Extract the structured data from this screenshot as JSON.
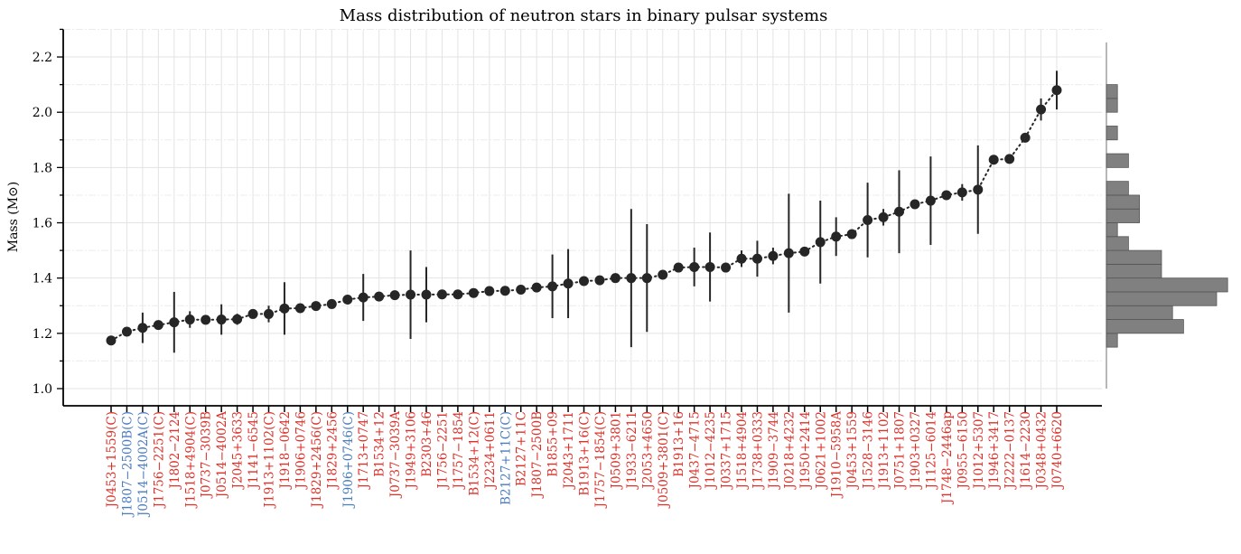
{
  "chart_data": {
    "type": "scatter",
    "title": "Mass distribution of neutron stars in binary pulsar systems",
    "ylabel": "Mass (M⊙)",
    "ylim": [
      0.94,
      2.3
    ],
    "yticks": [
      "1.0",
      "1.2",
      "1.4",
      "1.6",
      "1.8",
      "2.0",
      "2.2"
    ],
    "grid": true,
    "colors": {
      "point": "#262626",
      "label_red": "#dc3028",
      "label_blue": "#4a7cc0",
      "hist": "#808080"
    },
    "points": [
      {
        "name": "J0453+1559(C)",
        "mass": 1.174,
        "err": 0.0,
        "color": "red"
      },
      {
        "name": "J1807−2500B(C)",
        "mass": 1.206,
        "err": 0.0,
        "color": "blue"
      },
      {
        "name": "J0514−4002A(C)",
        "mass": 1.22,
        "err": 0.055,
        "color": "blue"
      },
      {
        "name": "J1756−2251(C)",
        "mass": 1.23,
        "err": 0.0,
        "color": "red"
      },
      {
        "name": "J1802−2124",
        "mass": 1.24,
        "err": 0.11,
        "color": "red"
      },
      {
        "name": "J1518+4904(C)",
        "mass": 1.25,
        "err": 0.03,
        "color": "red"
      },
      {
        "name": "J0737−3039B",
        "mass": 1.249,
        "err": 0.0,
        "color": "red"
      },
      {
        "name": "J0514−4002A",
        "mass": 1.25,
        "err": 0.055,
        "color": "red"
      },
      {
        "name": "J2045+3633",
        "mass": 1.251,
        "err": 0.02,
        "color": "red"
      },
      {
        "name": "J1141−6545",
        "mass": 1.27,
        "err": 0.0,
        "color": "red"
      },
      {
        "name": "J1913+1102(C)",
        "mass": 1.27,
        "err": 0.03,
        "color": "red"
      },
      {
        "name": "J1918−0642",
        "mass": 1.29,
        "err": 0.095,
        "color": "red"
      },
      {
        "name": "J1906+0746",
        "mass": 1.291,
        "err": 0.0,
        "color": "red"
      },
      {
        "name": "J1829+2456(C)",
        "mass": 1.299,
        "err": 0.0,
        "color": "red"
      },
      {
        "name": "J1829+2456",
        "mass": 1.306,
        "err": 0.0,
        "color": "red"
      },
      {
        "name": "J1906+0746(C)",
        "mass": 1.322,
        "err": 0.0,
        "color": "blue"
      },
      {
        "name": "J1713+0747",
        "mass": 1.33,
        "err": 0.085,
        "color": "red"
      },
      {
        "name": "B1534+12",
        "mass": 1.333,
        "err": 0.0,
        "color": "red"
      },
      {
        "name": "J0737−3039A",
        "mass": 1.338,
        "err": 0.0,
        "color": "red"
      },
      {
        "name": "J1949+3106",
        "mass": 1.34,
        "err": 0.16,
        "color": "red"
      },
      {
        "name": "B2303+46",
        "mass": 1.34,
        "err": 0.1,
        "color": "red"
      },
      {
        "name": "J1756−2251",
        "mass": 1.341,
        "err": 0.0,
        "color": "red"
      },
      {
        "name": "J1757−1854",
        "mass": 1.341,
        "err": 0.0,
        "color": "red"
      },
      {
        "name": "B1534+12(C)",
        "mass": 1.346,
        "err": 0.0,
        "color": "red"
      },
      {
        "name": "J2234+0611",
        "mass": 1.353,
        "err": 0.0,
        "color": "red"
      },
      {
        "name": "B2127+11C(C)",
        "mass": 1.354,
        "err": 0.0,
        "color": "blue"
      },
      {
        "name": "B2127+11C",
        "mass": 1.358,
        "err": 0.0,
        "color": "red"
      },
      {
        "name": "J1807−2500B",
        "mass": 1.366,
        "err": 0.0,
        "color": "red"
      },
      {
        "name": "B1855+09",
        "mass": 1.37,
        "err": 0.115,
        "color": "red"
      },
      {
        "name": "J2043+1711",
        "mass": 1.38,
        "err": 0.125,
        "color": "red"
      },
      {
        "name": "B1913+16(C)",
        "mass": 1.389,
        "err": 0.0,
        "color": "red"
      },
      {
        "name": "J1757−1854(C)",
        "mass": 1.392,
        "err": 0.0,
        "color": "red"
      },
      {
        "name": "J0509+3801",
        "mass": 1.4,
        "err": 0.0,
        "color": "red"
      },
      {
        "name": "J1933−6211",
        "mass": 1.4,
        "err": 0.25,
        "color": "red"
      },
      {
        "name": "J2053+4650",
        "mass": 1.4,
        "err": 0.195,
        "color": "red"
      },
      {
        "name": "J0509+3801(C)",
        "mass": 1.412,
        "err": 0.0,
        "color": "red"
      },
      {
        "name": "B1913+16",
        "mass": 1.438,
        "err": 0.0,
        "color": "red"
      },
      {
        "name": "J0437−4715",
        "mass": 1.44,
        "err": 0.07,
        "color": "red"
      },
      {
        "name": "J1012−4235",
        "mass": 1.44,
        "err": 0.125,
        "color": "red"
      },
      {
        "name": "J0337+1715",
        "mass": 1.438,
        "err": 0.0,
        "color": "red"
      },
      {
        "name": "J1518+4904",
        "mass": 1.47,
        "err": 0.03,
        "color": "red"
      },
      {
        "name": "J1738+0333",
        "mass": 1.47,
        "err": 0.065,
        "color": "red"
      },
      {
        "name": "J1909−3744",
        "mass": 1.48,
        "err": 0.03,
        "color": "red"
      },
      {
        "name": "J0218+4232",
        "mass": 1.49,
        "err": 0.215,
        "color": "red"
      },
      {
        "name": "J1950+2414",
        "mass": 1.496,
        "err": 0.015,
        "color": "red"
      },
      {
        "name": "J0621+1002",
        "mass": 1.53,
        "err": 0.15,
        "color": "red"
      },
      {
        "name": "J1910−5958A",
        "mass": 1.55,
        "err": 0.07,
        "color": "red"
      },
      {
        "name": "J0453+1559",
        "mass": 1.559,
        "err": 0.0,
        "color": "red"
      },
      {
        "name": "J1528−3146",
        "mass": 1.61,
        "err": 0.135,
        "color": "red"
      },
      {
        "name": "J1913+1102",
        "mass": 1.62,
        "err": 0.03,
        "color": "red"
      },
      {
        "name": "J0751+1807",
        "mass": 1.64,
        "err": 0.15,
        "color": "red"
      },
      {
        "name": "J1903+0327",
        "mass": 1.667,
        "err": 0.015,
        "color": "red"
      },
      {
        "name": "J1125−6014",
        "mass": 1.68,
        "err": 0.16,
        "color": "red"
      },
      {
        "name": "J1748−2446ap",
        "mass": 1.7,
        "err": 0.015,
        "color": "red"
      },
      {
        "name": "J0955−6150",
        "mass": 1.71,
        "err": 0.03,
        "color": "red"
      },
      {
        "name": "J1012+5307",
        "mass": 1.72,
        "err": 0.16,
        "color": "red"
      },
      {
        "name": "J1946+3417",
        "mass": 1.828,
        "err": 0.0,
        "color": "red"
      },
      {
        "name": "J2222−0137",
        "mass": 1.831,
        "err": 0.0,
        "color": "red"
      },
      {
        "name": "J1614−2230",
        "mass": 1.908,
        "err": 0.0,
        "color": "red"
      },
      {
        "name": "J0348+0432",
        "mass": 2.01,
        "err": 0.04,
        "color": "red"
      },
      {
        "name": "J0740+6620",
        "mass": 2.08,
        "err": 0.07,
        "color": "red"
      }
    ],
    "histogram": {
      "orientation": "horizontal",
      "bin_width": 0.05,
      "bins_start": 1.15,
      "counts": [
        1,
        7,
        6,
        10,
        11,
        5,
        5,
        2,
        1,
        3,
        3,
        2,
        0,
        2,
        0,
        1,
        0,
        1,
        1
      ]
    }
  }
}
